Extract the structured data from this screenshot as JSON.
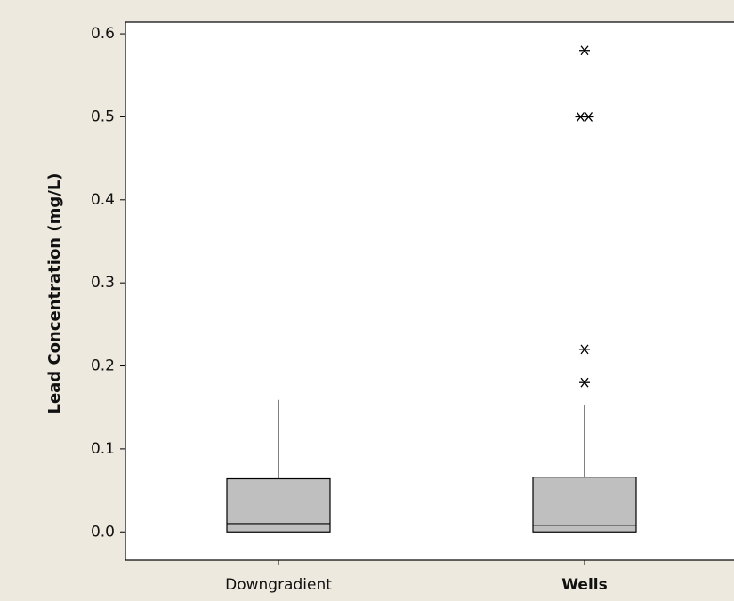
{
  "chart_data": {
    "type": "box",
    "y_label": "Lead Concentration (mg/L)",
    "categories": [
      "Downgradient",
      "Wells"
    ],
    "boxes": [
      {
        "min": 0,
        "q1": 0,
        "median": 0.01,
        "q3": 0.064,
        "max": 0.159,
        "outliers": []
      },
      {
        "min": 0,
        "q1": 0,
        "median": 0.008,
        "q3": 0.066,
        "max": 0.153,
        "outliers": [
          0.18,
          0.22,
          0.5,
          0.5,
          0.58
        ]
      }
    ],
    "color": "#bfbfbf",
    "ylim": [
      -0.034,
      0.614
    ],
    "yticks": [
      {
        "value": 0,
        "label": "0.0"
      },
      0.1,
      0.2,
      0.3,
      0.4,
      0.5,
      0.6
    ]
  }
}
